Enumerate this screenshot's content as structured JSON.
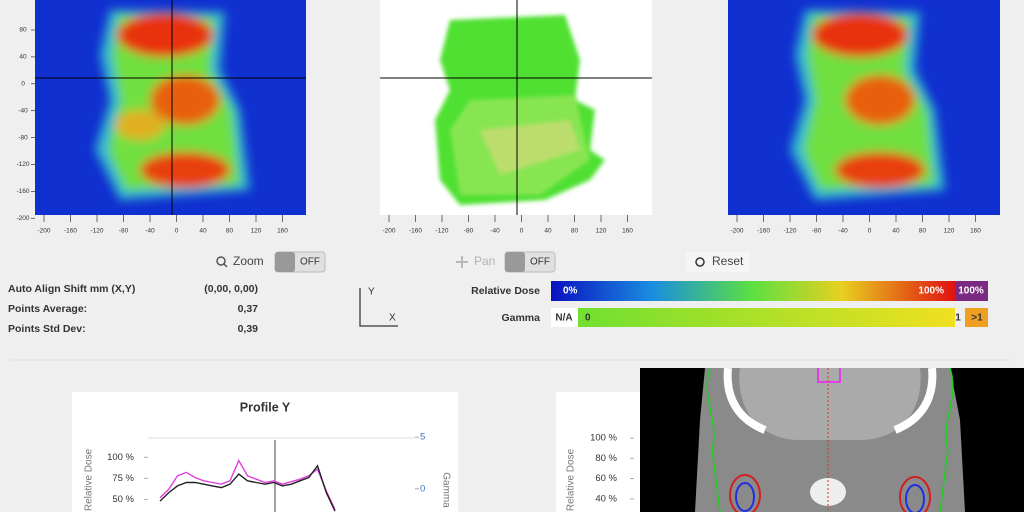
{
  "dose_maps": [
    {
      "x_ticks": [
        -200,
        -160,
        -120,
        -80,
        -40,
        0,
        40,
        80,
        120,
        160
      ],
      "y_ticks": [
        80,
        40,
        0,
        -40,
        -80,
        -120,
        -160,
        -200
      ]
    },
    {
      "x_ticks": [
        -200,
        -160,
        -120,
        -80,
        -40,
        0,
        40,
        80,
        120,
        160
      ]
    },
    {
      "x_ticks": [
        -200,
        -160,
        -120,
        -80,
        -40,
        0,
        40,
        80,
        120,
        160
      ]
    }
  ],
  "controls": {
    "zoom": "Zoom",
    "zoom_state": "OFF",
    "pan": "Pan",
    "pan_state": "OFF",
    "reset": "Reset"
  },
  "info": [
    {
      "label": "Auto Align Shift mm (X,Y)",
      "value": "(0,00, 0,00)"
    },
    {
      "label": "Points Average:",
      "value": "0,37"
    },
    {
      "label": "Points Std Dev:",
      "value": "0,39"
    }
  ],
  "axes_icon": {
    "y": "Y",
    "x": "X"
  },
  "legend": {
    "dose_label": "Relative Dose",
    "dose_min": "0%",
    "dose_max": "100%",
    "dose_over": "100%",
    "gamma_label": "Gamma",
    "gamma_na": "N/A",
    "gamma_min": "0",
    "gamma_max": "1",
    "gamma_over": ">1"
  },
  "profile_y": {
    "title": "Profile Y",
    "y_label": "Relative Dose",
    "y2_label": "Gamma",
    "ylim": [
      35,
      130
    ],
    "y2lim": [
      -2.25,
      5.5
    ],
    "yticks": [
      {
        "value": 100,
        "label": "100 %"
      },
      {
        "value": 75,
        "label": "75 %"
      },
      {
        "value": 50,
        "label": "50 %"
      }
    ],
    "y2ticks": [
      5,
      0
    ],
    "series": [
      {
        "color": "#e040e0",
        "values": [
          52,
          62,
          78,
          82,
          76,
          72,
          70,
          68,
          72,
          96,
          78,
          74,
          70,
          72,
          68,
          71,
          74,
          78,
          86,
          60,
          38
        ]
      },
      {
        "color": "#222222",
        "values": [
          48,
          58,
          66,
          70,
          70,
          68,
          66,
          64,
          68,
          80,
          72,
          70,
          68,
          70,
          66,
          68,
          72,
          76,
          90,
          58,
          36
        ]
      }
    ]
  },
  "profile_x": {
    "y_label": "Relative Dose",
    "ylim": [
      27,
      106
    ],
    "yticks": [
      {
        "value": 100,
        "label": "100 %"
      },
      {
        "value": 80,
        "label": "80 %"
      },
      {
        "value": 60,
        "label": "60 %"
      },
      {
        "value": 40,
        "label": "40 %"
      }
    ]
  }
}
